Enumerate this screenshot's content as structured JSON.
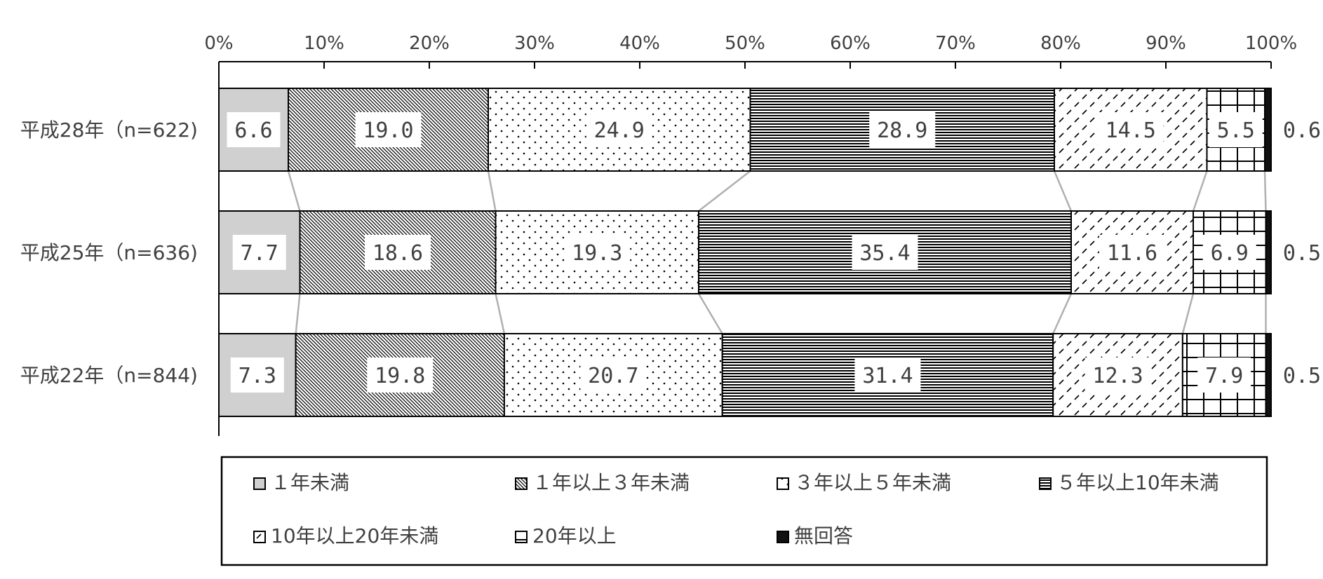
{
  "chart_data": {
    "type": "bar",
    "orientation": "horizontal",
    "stacked": "100%",
    "categories": [
      "平成28年（n=622)",
      "平成25年（n=636)",
      "平成22年（n=844)"
    ],
    "series": [
      {
        "name": "１年未満",
        "values": [
          6.6,
          7.7,
          7.3
        ],
        "labels": [
          "6.6",
          "7.7",
          "7.3"
        ]
      },
      {
        "name": "１年以上３年未満",
        "values": [
          19.0,
          18.6,
          19.8
        ],
        "labels": [
          "19.0",
          "18.6",
          "19.8"
        ]
      },
      {
        "name": "３年以上５年未満",
        "values": [
          24.9,
          19.3,
          20.7
        ],
        "labels": [
          "24.9",
          "19.3",
          "20.7"
        ]
      },
      {
        "name": "５年以上10年未満",
        "values": [
          28.9,
          35.4,
          31.4
        ],
        "labels": [
          "28.9",
          "35.4",
          "31.4"
        ]
      },
      {
        "name": "10年以上20年未満",
        "values": [
          14.5,
          11.6,
          12.3
        ],
        "labels": [
          "14.5",
          "11.6",
          "12.3"
        ]
      },
      {
        "name": "20年以上",
        "values": [
          5.5,
          6.9,
          7.9
        ],
        "labels": [
          "5.5",
          "6.9",
          "7.9"
        ]
      },
      {
        "name": "無回答",
        "values": [
          0.6,
          0.5,
          0.5
        ],
        "labels": [
          "0.6",
          "0.5",
          "0.5"
        ]
      }
    ],
    "xticks": [
      "0%",
      "10%",
      "20%",
      "30%",
      "40%",
      "50%",
      "60%",
      "70%",
      "80%",
      "90%",
      "100%"
    ],
    "xlim": [
      0,
      100
    ],
    "legend_position": "bottom",
    "grid": false,
    "series_lines": true,
    "title": "",
    "xlabel": "",
    "ylabel": ""
  }
}
